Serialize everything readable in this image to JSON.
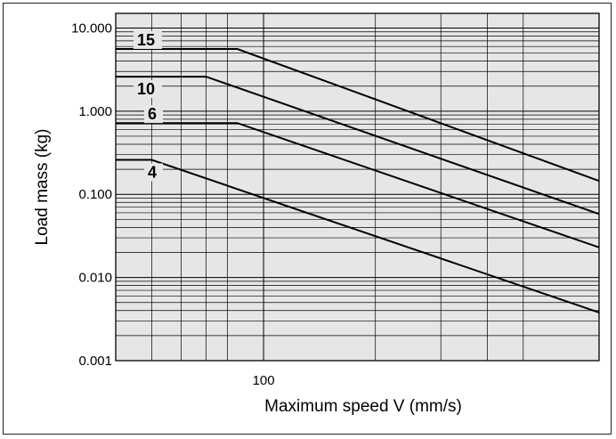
{
  "chart_data": {
    "type": "line",
    "title": "",
    "xlabel": "Maximum speed V (mm/s)",
    "ylabel": "Load mass (kg)",
    "x_scale": "log",
    "y_scale": "log",
    "xlim": [
      40,
      800
    ],
    "ylim": [
      0.001,
      15
    ],
    "x_tick_labels": [
      {
        "value": 100,
        "label": "100"
      }
    ],
    "y_tick_labels": [
      {
        "value": 10,
        "label": "10.000"
      },
      {
        "value": 1,
        "label": "1.000"
      },
      {
        "value": 0.1,
        "label": "0.100"
      },
      {
        "value": 0.01,
        "label": "0.010"
      },
      {
        "value": 0.001,
        "label": "0.001"
      }
    ],
    "grid": true,
    "background": "#e6e6e6",
    "line_color": "#000000",
    "series": [
      {
        "name": "15",
        "x": [
          40,
          85,
          800
        ],
        "y": [
          5.6,
          5.6,
          0.145
        ]
      },
      {
        "name": "10",
        "x": [
          40,
          70,
          800
        ],
        "y": [
          2.6,
          2.6,
          0.058
        ]
      },
      {
        "name": "6",
        "x": [
          40,
          85,
          800
        ],
        "y": [
          0.72,
          0.72,
          0.023
        ]
      },
      {
        "name": "4",
        "x": [
          40,
          50,
          800
        ],
        "y": [
          0.26,
          0.26,
          0.0038
        ]
      }
    ]
  }
}
